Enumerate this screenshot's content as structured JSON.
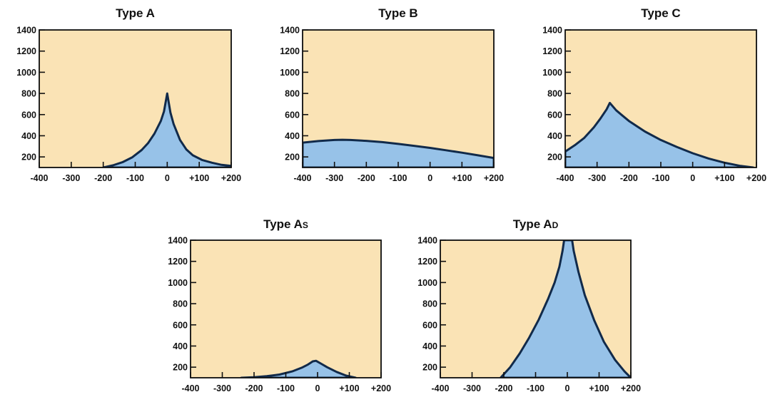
{
  "chart_data": [
    {
      "type": "area",
      "title_main": "Type A",
      "title_sub": "",
      "xlim": [
        -400,
        200
      ],
      "ylim": [
        100,
        1400
      ],
      "x_ticks": [
        -400,
        -300,
        -200,
        -100,
        0,
        100,
        200
      ],
      "x_tick_labels": [
        "-400",
        "-300",
        "-200",
        "-100",
        "0",
        "+100",
        "+200"
      ],
      "y_ticks": [
        200,
        400,
        600,
        800,
        1000,
        1200,
        1400
      ],
      "y_tick_labels": [
        "200",
        "400",
        "600",
        "800",
        "1000",
        "1200",
        "1400"
      ],
      "series": [
        {
          "x": [
            -200,
            -170,
            -140,
            -110,
            -80,
            -60,
            -40,
            -20,
            -10,
            0,
            10,
            20,
            40,
            60,
            80,
            110,
            140,
            170,
            200
          ],
          "y": [
            100,
            120,
            150,
            195,
            265,
            330,
            420,
            540,
            630,
            800,
            620,
            510,
            360,
            270,
            215,
            170,
            145,
            125,
            115
          ]
        }
      ]
    },
    {
      "type": "area",
      "title_main": "Type B",
      "title_sub": "",
      "xlim": [
        -400,
        200
      ],
      "ylim": [
        100,
        1400
      ],
      "x_ticks": [
        -400,
        -300,
        -200,
        -100,
        0,
        100,
        200
      ],
      "x_tick_labels": [
        "-400",
        "-300",
        "-200",
        "-100",
        "0",
        "+100",
        "+200"
      ],
      "y_ticks": [
        200,
        400,
        600,
        800,
        1000,
        1200,
        1400
      ],
      "y_tick_labels": [
        "200",
        "400",
        "600",
        "800",
        "1000",
        "1200",
        "1400"
      ],
      "series": [
        {
          "x": [
            -400,
            -350,
            -300,
            -275,
            -250,
            -200,
            -150,
            -100,
            -50,
            0,
            50,
            100,
            150,
            200
          ],
          "y": [
            335,
            350,
            360,
            362,
            360,
            352,
            340,
            323,
            305,
            285,
            263,
            240,
            215,
            190
          ]
        }
      ]
    },
    {
      "type": "area",
      "title_main": "Type C",
      "title_sub": "",
      "xlim": [
        -400,
        200
      ],
      "ylim": [
        100,
        1400
      ],
      "x_ticks": [
        -400,
        -300,
        -200,
        -100,
        0,
        100,
        200
      ],
      "x_tick_labels": [
        "-400",
        "-300",
        "-200",
        "-100",
        "0",
        "+100",
        "+200"
      ],
      "y_ticks": [
        200,
        400,
        600,
        800,
        1000,
        1200,
        1400
      ],
      "y_tick_labels": [
        "200",
        "400",
        "600",
        "800",
        "1000",
        "1200",
        "1400"
      ],
      "series": [
        {
          "x": [
            -400,
            -370,
            -340,
            -310,
            -290,
            -270,
            -260,
            -240,
            -220,
            -200,
            -150,
            -100,
            -50,
            0,
            50,
            100,
            150,
            190
          ],
          "y": [
            250,
            310,
            380,
            480,
            560,
            650,
            710,
            640,
            590,
            540,
            440,
            360,
            295,
            235,
            185,
            145,
            115,
            100
          ]
        }
      ]
    },
    {
      "type": "area",
      "title_main": "Type A",
      "title_sub": "S",
      "xlim": [
        -400,
        200
      ],
      "ylim": [
        100,
        1400
      ],
      "x_ticks": [
        -400,
        -300,
        -200,
        -100,
        0,
        100,
        200
      ],
      "x_tick_labels": [
        "-400",
        "-300",
        "-200",
        "-100",
        "0",
        "+100",
        "+200"
      ],
      "y_ticks": [
        200,
        400,
        600,
        800,
        1000,
        1200,
        1400
      ],
      "y_tick_labels": [
        "200",
        "400",
        "600",
        "800",
        "1000",
        "1200",
        "1400"
      ],
      "series": [
        {
          "x": [
            -240,
            -200,
            -160,
            -120,
            -80,
            -50,
            -30,
            -15,
            -5,
            10,
            30,
            60,
            90,
            120
          ],
          "y": [
            100,
            105,
            115,
            130,
            160,
            195,
            225,
            255,
            260,
            235,
            200,
            155,
            120,
            100
          ]
        }
      ]
    },
    {
      "type": "area",
      "title_main": "Type A",
      "title_sub": "D",
      "xlim": [
        -400,
        200
      ],
      "ylim": [
        100,
        1400
      ],
      "x_ticks": [
        -400,
        -300,
        -200,
        -100,
        0,
        100,
        200
      ],
      "x_tick_labels": [
        "-400",
        "-300",
        "-200",
        "-100",
        "0",
        "+100",
        "+200"
      ],
      "y_ticks": [
        200,
        400,
        600,
        800,
        1000,
        1200,
        1400
      ],
      "y_tick_labels": [
        "200",
        "400",
        "600",
        "800",
        "1000",
        "1200",
        "1400"
      ],
      "series": [
        {
          "x": [
            -210,
            -180,
            -150,
            -120,
            -90,
            -60,
            -40,
            -25,
            -15,
            -10,
            15,
            20,
            35,
            55,
            85,
            115,
            150,
            180,
            200
          ],
          "y": [
            100,
            200,
            330,
            480,
            650,
            850,
            1000,
            1150,
            1300,
            1400,
            1400,
            1300,
            1100,
            880,
            640,
            440,
            270,
            160,
            100
          ]
        }
      ]
    }
  ]
}
